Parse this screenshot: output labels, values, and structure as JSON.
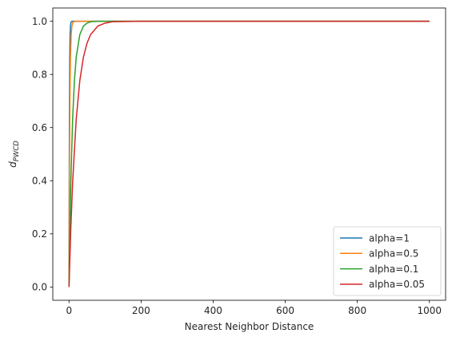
{
  "chart_data": {
    "type": "line",
    "title": "",
    "xlabel": "Nearest Neighbor Distance",
    "ylabel": "d",
    "ylabel_sub": "PWCD",
    "xlim": [
      -45,
      1045
    ],
    "ylim": [
      -0.05,
      1.05
    ],
    "x_ticks": [
      0,
      200,
      400,
      600,
      800,
      1000
    ],
    "y_ticks": [
      0.0,
      0.2,
      0.4,
      0.6,
      0.8,
      1.0
    ],
    "x_tick_labels": [
      "0",
      "200",
      "400",
      "600",
      "800",
      "1000"
    ],
    "y_tick_labels": [
      "0.0",
      "0.2",
      "0.4",
      "0.6",
      "0.8",
      "1.0"
    ],
    "grid": false,
    "legend_position": "bottom-right",
    "series": [
      {
        "name": "alpha=1",
        "color": "#1f77b4",
        "x": [
          0,
          1,
          2,
          3,
          4,
          5,
          6,
          8,
          10,
          15,
          20,
          30,
          50,
          100,
          200,
          400,
          600,
          800,
          1000
        ],
        "y": [
          0,
          0.632,
          0.865,
          0.95,
          0.982,
          0.993,
          0.998,
          1.0,
          1.0,
          1.0,
          1.0,
          1.0,
          1.0,
          1.0,
          1.0,
          1.0,
          1.0,
          1.0,
          1.0
        ]
      },
      {
        "name": "alpha=0.5",
        "color": "#ff7f0e",
        "x": [
          0,
          1,
          2,
          3,
          4,
          6,
          8,
          10,
          12,
          15,
          20,
          30,
          50,
          100,
          200,
          400,
          600,
          800,
          1000
        ],
        "y": [
          0,
          0.393,
          0.632,
          0.777,
          0.865,
          0.95,
          0.982,
          0.993,
          0.998,
          0.999,
          1.0,
          1.0,
          1.0,
          1.0,
          1.0,
          1.0,
          1.0,
          1.0,
          1.0
        ]
      },
      {
        "name": "alpha=0.1",
        "color": "#2ca02c",
        "x": [
          0,
          2,
          5,
          10,
          15,
          20,
          30,
          40,
          50,
          60,
          80,
          100,
          150,
          200,
          400,
          600,
          800,
          1000
        ],
        "y": [
          0,
          0.181,
          0.393,
          0.632,
          0.777,
          0.865,
          0.95,
          0.982,
          0.993,
          0.998,
          1.0,
          1.0,
          1.0,
          1.0,
          1.0,
          1.0,
          1.0,
          1.0
        ]
      },
      {
        "name": "alpha=0.05",
        "color": "#d62728",
        "x": [
          0,
          5,
          10,
          20,
          30,
          40,
          50,
          60,
          80,
          100,
          120,
          150,
          200,
          250,
          300,
          400,
          600,
          800,
          1000
        ],
        "y": [
          0,
          0.221,
          0.393,
          0.632,
          0.777,
          0.865,
          0.918,
          0.95,
          0.982,
          0.993,
          0.998,
          0.999,
          1.0,
          1.0,
          1.0,
          1.0,
          1.0,
          1.0,
          1.0
        ]
      }
    ]
  }
}
